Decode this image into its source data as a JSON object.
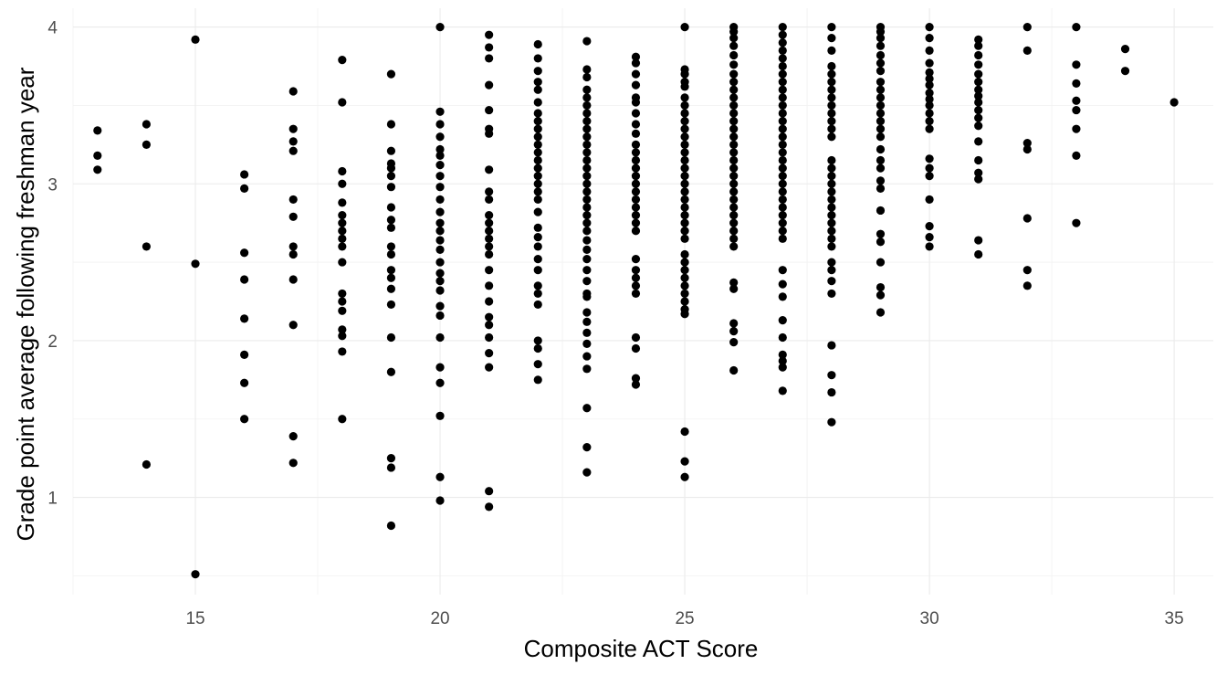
{
  "chart_data": {
    "type": "scatter",
    "title": "",
    "xlabel": "Composite ACT Score",
    "ylabel": "Grade point average following freshman year",
    "xlim": [
      12.5,
      35.8
    ],
    "ylim": [
      0.38,
      4.12
    ],
    "xticks": [
      "15",
      "20",
      "25",
      "30",
      "35"
    ],
    "yticks": [
      "1",
      "2",
      "3",
      "4"
    ],
    "grid": true,
    "legend": "none",
    "point_color": "#000000",
    "points": [
      {
        "x": 13,
        "y": [
          3.34,
          3.18,
          3.09
        ]
      },
      {
        "x": 14,
        "y": [
          3.38,
          3.25,
          2.6,
          1.21
        ]
      },
      {
        "x": 15,
        "y": [
          3.92,
          2.49,
          0.51
        ]
      },
      {
        "x": 16,
        "y": [
          3.06,
          2.97,
          2.56,
          2.39,
          2.14,
          1.91,
          1.73,
          1.5
        ]
      },
      {
        "x": 17,
        "y": [
          3.59,
          3.35,
          3.27,
          3.21,
          2.9,
          2.79,
          2.6,
          2.55,
          2.39,
          2.1,
          1.39,
          1.22
        ]
      },
      {
        "x": 18,
        "y": [
          3.79,
          3.52,
          3.08,
          3.0,
          2.88,
          2.8,
          2.75,
          2.7,
          2.65,
          2.6,
          2.5,
          2.3,
          2.25,
          2.19,
          2.07,
          2.03,
          1.93,
          1.5
        ]
      },
      {
        "x": 19,
        "y": [
          3.7,
          3.38,
          3.21,
          3.13,
          3.1,
          3.05,
          2.98,
          2.85,
          2.77,
          2.72,
          2.6,
          2.55,
          2.45,
          2.4,
          2.33,
          2.23,
          2.02,
          1.8,
          1.25,
          1.19,
          0.82
        ]
      },
      {
        "x": 20,
        "y": [
          4.0,
          3.46,
          3.38,
          3.3,
          3.22,
          3.18,
          3.12,
          3.05,
          2.98,
          2.9,
          2.82,
          2.75,
          2.7,
          2.64,
          2.58,
          2.5,
          2.43,
          2.38,
          2.32,
          2.22,
          2.16,
          2.02,
          1.83,
          1.73,
          1.52,
          1.13,
          0.98
        ]
      },
      {
        "x": 21,
        "y": [
          3.95,
          3.87,
          3.8,
          3.63,
          3.47,
          3.35,
          3.32,
          3.09,
          2.95,
          2.9,
          2.8,
          2.75,
          2.7,
          2.65,
          2.6,
          2.55,
          2.45,
          2.35,
          2.25,
          2.15,
          2.1,
          2.02,
          1.92,
          1.83,
          1.04,
          0.94
        ]
      },
      {
        "x": 22,
        "y": [
          3.89,
          3.8,
          3.72,
          3.65,
          3.6,
          3.52,
          3.45,
          3.4,
          3.35,
          3.3,
          3.25,
          3.2,
          3.15,
          3.1,
          3.05,
          3.0,
          2.95,
          2.9,
          2.82,
          2.72,
          2.66,
          2.6,
          2.52,
          2.45,
          2.35,
          2.3,
          2.23,
          2.0,
          1.95,
          1.85,
          1.75
        ]
      },
      {
        "x": 23,
        "y": [
          3.91,
          3.73,
          3.68,
          3.6,
          3.55,
          3.5,
          3.45,
          3.4,
          3.35,
          3.3,
          3.25,
          3.2,
          3.15,
          3.1,
          3.05,
          3.0,
          2.95,
          2.9,
          2.85,
          2.8,
          2.75,
          2.7,
          2.64,
          2.58,
          2.52,
          2.45,
          2.38,
          2.3,
          2.28,
          2.18,
          2.12,
          2.05,
          1.98,
          1.9,
          1.82,
          1.57,
          1.32,
          1.16
        ]
      },
      {
        "x": 24,
        "y": [
          3.81,
          3.77,
          3.7,
          3.63,
          3.55,
          3.52,
          3.45,
          3.38,
          3.32,
          3.25,
          3.2,
          3.15,
          3.1,
          3.05,
          3.0,
          2.95,
          2.9,
          2.85,
          2.8,
          2.75,
          2.7,
          2.52,
          2.45,
          2.4,
          2.35,
          2.3,
          2.02,
          1.95,
          1.76,
          1.72
        ]
      },
      {
        "x": 25,
        "y": [
          4.0,
          3.73,
          3.7,
          3.65,
          3.62,
          3.55,
          3.5,
          3.45,
          3.4,
          3.35,
          3.3,
          3.25,
          3.2,
          3.15,
          3.1,
          3.05,
          3.0,
          2.95,
          2.9,
          2.85,
          2.8,
          2.75,
          2.7,
          2.65,
          2.55,
          2.5,
          2.45,
          2.4,
          2.35,
          2.3,
          2.25,
          2.2,
          2.17,
          1.42,
          1.23,
          1.13
        ]
      },
      {
        "x": 26,
        "y": [
          4.0,
          3.97,
          3.93,
          3.88,
          3.82,
          3.76,
          3.7,
          3.65,
          3.6,
          3.55,
          3.5,
          3.45,
          3.4,
          3.35,
          3.3,
          3.25,
          3.2,
          3.15,
          3.1,
          3.05,
          3.0,
          2.95,
          2.9,
          2.85,
          2.8,
          2.75,
          2.7,
          2.65,
          2.6,
          2.37,
          2.33,
          2.11,
          2.06,
          1.99,
          1.81
        ]
      },
      {
        "x": 27,
        "y": [
          4.0,
          3.95,
          3.9,
          3.85,
          3.8,
          3.75,
          3.7,
          3.65,
          3.6,
          3.55,
          3.5,
          3.45,
          3.4,
          3.35,
          3.3,
          3.25,
          3.2,
          3.15,
          3.1,
          3.05,
          3.0,
          2.95,
          2.9,
          2.85,
          2.8,
          2.75,
          2.7,
          2.65,
          2.45,
          2.36,
          2.28,
          2.13,
          2.02,
          1.91,
          1.87,
          1.83,
          1.68
        ]
      },
      {
        "x": 28,
        "y": [
          4.0,
          3.93,
          3.85,
          3.75,
          3.7,
          3.65,
          3.6,
          3.55,
          3.5,
          3.45,
          3.4,
          3.35,
          3.3,
          3.15,
          3.1,
          3.05,
          3.0,
          2.95,
          2.9,
          2.85,
          2.8,
          2.75,
          2.7,
          2.65,
          2.6,
          2.5,
          2.45,
          2.38,
          2.3,
          1.97,
          1.78,
          1.67,
          1.48
        ]
      },
      {
        "x": 29,
        "y": [
          4.0,
          3.97,
          3.93,
          3.88,
          3.82,
          3.77,
          3.72,
          3.65,
          3.6,
          3.55,
          3.5,
          3.45,
          3.4,
          3.35,
          3.3,
          3.22,
          3.15,
          3.1,
          3.02,
          2.97,
          2.83,
          2.68,
          2.63,
          2.5,
          2.34,
          2.29,
          2.18
        ]
      },
      {
        "x": 30,
        "y": [
          4.0,
          3.93,
          3.85,
          3.77,
          3.71,
          3.67,
          3.63,
          3.58,
          3.54,
          3.5,
          3.45,
          3.4,
          3.35,
          3.16,
          3.1,
          3.05,
          2.9,
          2.73,
          2.66,
          2.6
        ]
      },
      {
        "x": 31,
        "y": [
          3.92,
          3.88,
          3.82,
          3.76,
          3.7,
          3.65,
          3.6,
          3.56,
          3.52,
          3.47,
          3.42,
          3.37,
          3.27,
          3.15,
          3.07,
          3.03,
          2.64,
          2.55
        ]
      },
      {
        "x": 32,
        "y": [
          4.0,
          3.85,
          3.26,
          3.22,
          2.78,
          2.45,
          2.35
        ]
      },
      {
        "x": 33,
        "y": [
          4.0,
          3.76,
          3.64,
          3.53,
          3.47,
          3.35,
          3.18,
          2.75
        ]
      },
      {
        "x": 34,
        "y": [
          3.86,
          3.72
        ]
      },
      {
        "x": 35,
        "y": [
          3.52
        ]
      }
    ]
  }
}
